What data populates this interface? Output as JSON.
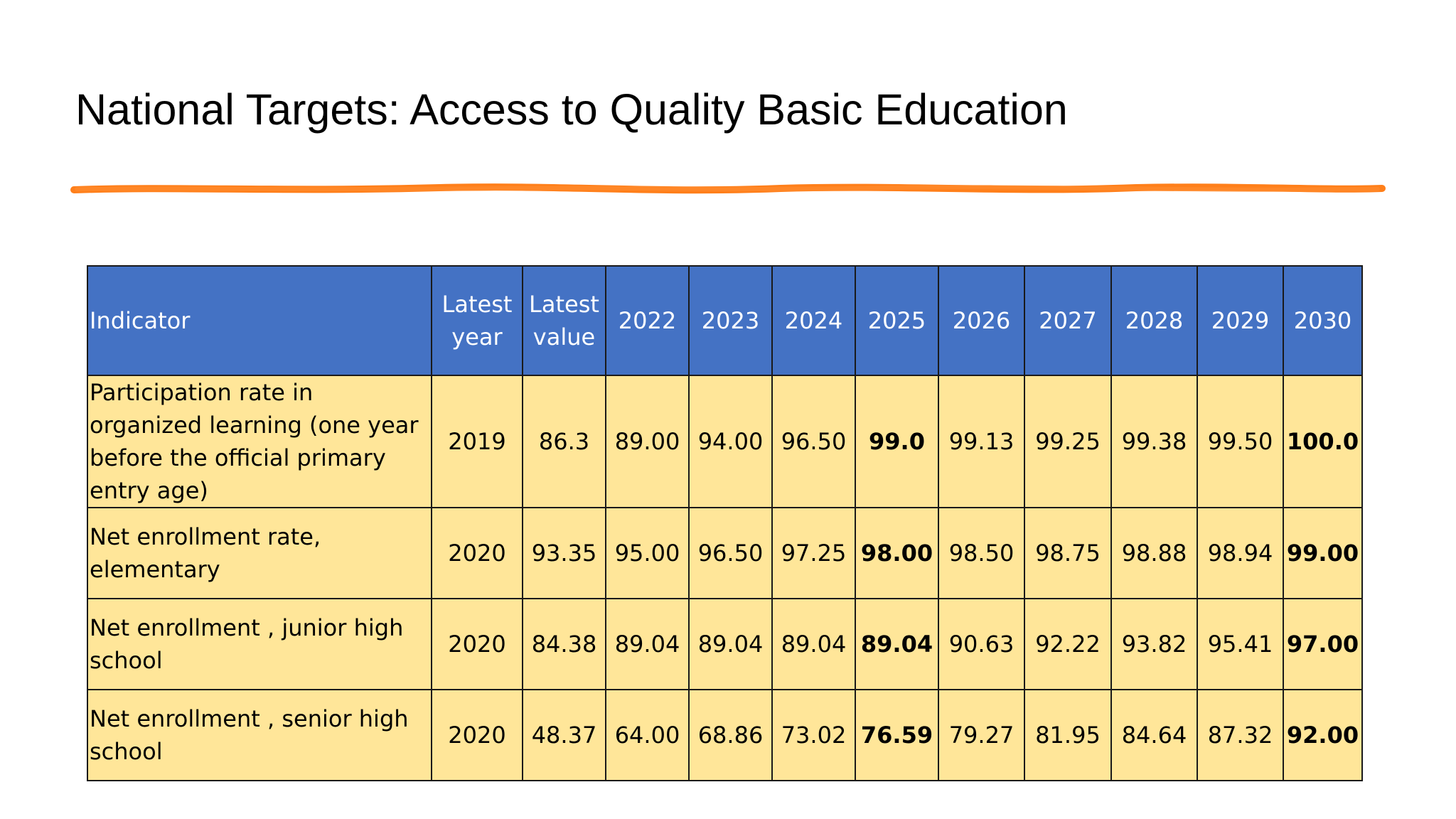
{
  "slide": {
    "title": "National Targets: Access to Quality Basic Education",
    "accent_color": "#ff7f1a"
  },
  "table": {
    "header_color": "#4472c4",
    "row_color": "#ffe699",
    "headers": {
      "indicator": "Indicator",
      "latest_year_line1": "Latest",
      "latest_year_line2": "year",
      "latest_value_line1": "Latest",
      "latest_value_line2": "value",
      "y2022": "2022",
      "y2023": "2023",
      "y2024": "2024",
      "y2025": "2025",
      "y2026": "2026",
      "y2027": "2027",
      "y2028": "2028",
      "y2029": "2029",
      "y2030": "2030"
    },
    "rows": [
      {
        "indicator": "Participation rate in organized learning (one year before the official primary entry age)",
        "latest_year": "2019",
        "latest_value": "86.3",
        "y2022": "89.00",
        "y2023": "94.00",
        "y2024": "96.50",
        "y2025": "99.0",
        "y2026": "99.13",
        "y2027": "99.25",
        "y2028": "99.38",
        "y2029": "99.50",
        "y2030": "100.0"
      },
      {
        "indicator": "Net enrollment rate, elementary",
        "latest_year": "2020",
        "latest_value": "93.35",
        "y2022": "95.00",
        "y2023": "96.50",
        "y2024": "97.25",
        "y2025": "98.00",
        "y2026": "98.50",
        "y2027": "98.75",
        "y2028": "98.88",
        "y2029": "98.94",
        "y2030": "99.00"
      },
      {
        "indicator": "Net enrollment , junior high school",
        "latest_year": "2020",
        "latest_value": "84.38",
        "y2022": "89.04",
        "y2023": "89.04",
        "y2024": "89.04",
        "y2025": "89.04",
        "y2026": "90.63",
        "y2027": "92.22",
        "y2028": "93.82",
        "y2029": "95.41",
        "y2030": "97.00"
      },
      {
        "indicator": "Net enrollment , senior high school",
        "latest_year": "2020",
        "latest_value": "48.37",
        "y2022": "64.00",
        "y2023": "68.86",
        "y2024": "73.02",
        "y2025": "76.59",
        "y2026": "79.27",
        "y2027": "81.95",
        "y2028": "84.64",
        "y2029": "87.32",
        "y2030": "92.00"
      }
    ]
  }
}
